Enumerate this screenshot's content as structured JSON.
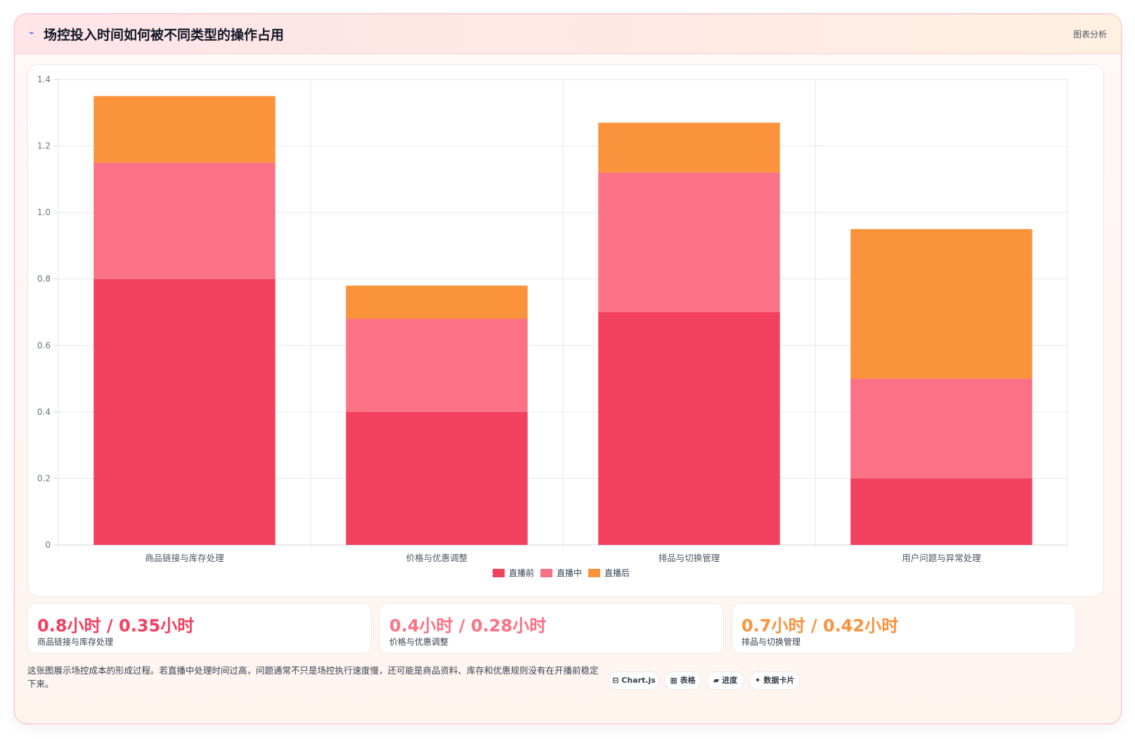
{
  "header": {
    "icon": "⌁",
    "title": "场控投入时间如何被不同类型的操作占用",
    "right_label": "图表分析"
  },
  "colors": {
    "before": "#f2405f",
    "during": "#fb7185",
    "after": "#fb923c"
  },
  "chart_data": {
    "type": "bar",
    "stacked": true,
    "categories": [
      "商品链接与库存处理",
      "价格与优惠调整",
      "排品与切换管理",
      "用户问题与异常处理"
    ],
    "series": [
      {
        "name": "直播前",
        "values": [
          0.8,
          0.4,
          0.7,
          0.2
        ],
        "color": "#f2405f"
      },
      {
        "name": "直播中",
        "values": [
          0.35,
          0.28,
          0.42,
          0.3
        ],
        "color": "#fb7185"
      },
      {
        "name": "直播后",
        "values": [
          0.2,
          0.1,
          0.15,
          0.45
        ],
        "color": "#fb923c"
      }
    ],
    "ylim": [
      0,
      1.4
    ],
    "yticks": [
      "0",
      "0.2",
      "0.4",
      "0.6",
      "0.8",
      "1.0",
      "1.2",
      "1.4"
    ],
    "grid": true,
    "legend_position": "bottom"
  },
  "stats": [
    {
      "value": "0.8小时 / 0.35小时",
      "label": "商品链接与库存处理",
      "color": "#f2405f"
    },
    {
      "value": "0.4小时 / 0.28小时",
      "label": "价格与优惠调整",
      "color": "#fb7185"
    },
    {
      "value": "0.7小时 / 0.42小时",
      "label": "排品与切换管理",
      "color": "#fb923c"
    }
  ],
  "footer": {
    "note": "这张图展示场控成本的形成过程。若直播中处理时间过高，问题通常不只是场控执行速度慢，还可能是商品资料、库存和优惠规则没有在开播前稳定下来。",
    "chips": [
      "⊟ Chart.js",
      "▦ 表格",
      "▰ 进度",
      "✦ 数据卡片"
    ]
  }
}
